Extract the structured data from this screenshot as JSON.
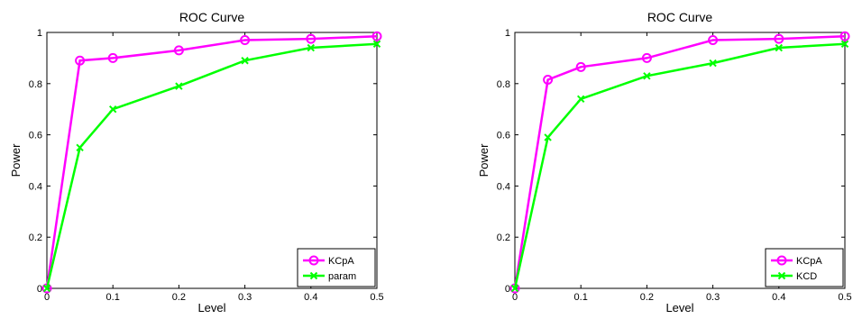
{
  "chart_data": [
    {
      "type": "line",
      "title": "ROC Curve",
      "xlabel": "Level",
      "ylabel": "Power",
      "xlim": [
        0,
        0.5
      ],
      "ylim": [
        0,
        1
      ],
      "xticks": [
        "0",
        "0.1",
        "0.2",
        "0.3",
        "0.4",
        "0.5"
      ],
      "yticks": [
        "0",
        "0.2",
        "0.4",
        "0.6",
        "0.8",
        "1"
      ],
      "grid": false,
      "legend_position": "bottom-right",
      "series": [
        {
          "name": "KCpA",
          "color": "#ff00ff",
          "marker": "circle",
          "x": [
            0,
            0.05,
            0.1,
            0.2,
            0.3,
            0.4,
            0.5
          ],
          "y": [
            0,
            0.89,
            0.9,
            0.93,
            0.97,
            0.975,
            0.985
          ]
        },
        {
          "name": "param",
          "color": "#00ff00",
          "marker": "x",
          "x": [
            0,
            0.05,
            0.1,
            0.2,
            0.3,
            0.4,
            0.5
          ],
          "y": [
            0,
            0.55,
            0.7,
            0.79,
            0.89,
            0.94,
            0.955
          ]
        }
      ]
    },
    {
      "type": "line",
      "title": "ROC Curve",
      "xlabel": "Level",
      "ylabel": "Power",
      "xlim": [
        0,
        0.5
      ],
      "ylim": [
        0,
        1
      ],
      "xticks": [
        "0",
        "0.1",
        "0.2",
        "0.3",
        "0.4",
        "0.5"
      ],
      "yticks": [
        "0",
        "0.2",
        "0.4",
        "0.6",
        "0.8",
        "1"
      ],
      "grid": false,
      "legend_position": "bottom-right",
      "series": [
        {
          "name": "KCpA",
          "color": "#ff00ff",
          "marker": "circle",
          "x": [
            0,
            0.05,
            0.1,
            0.2,
            0.3,
            0.4,
            0.5
          ],
          "y": [
            0,
            0.815,
            0.865,
            0.9,
            0.97,
            0.975,
            0.985
          ]
        },
        {
          "name": "KCD",
          "color": "#00ff00",
          "marker": "x",
          "x": [
            0,
            0.05,
            0.1,
            0.2,
            0.3,
            0.4,
            0.5
          ],
          "y": [
            0,
            0.59,
            0.74,
            0.83,
            0.88,
            0.94,
            0.955
          ]
        }
      ]
    }
  ]
}
